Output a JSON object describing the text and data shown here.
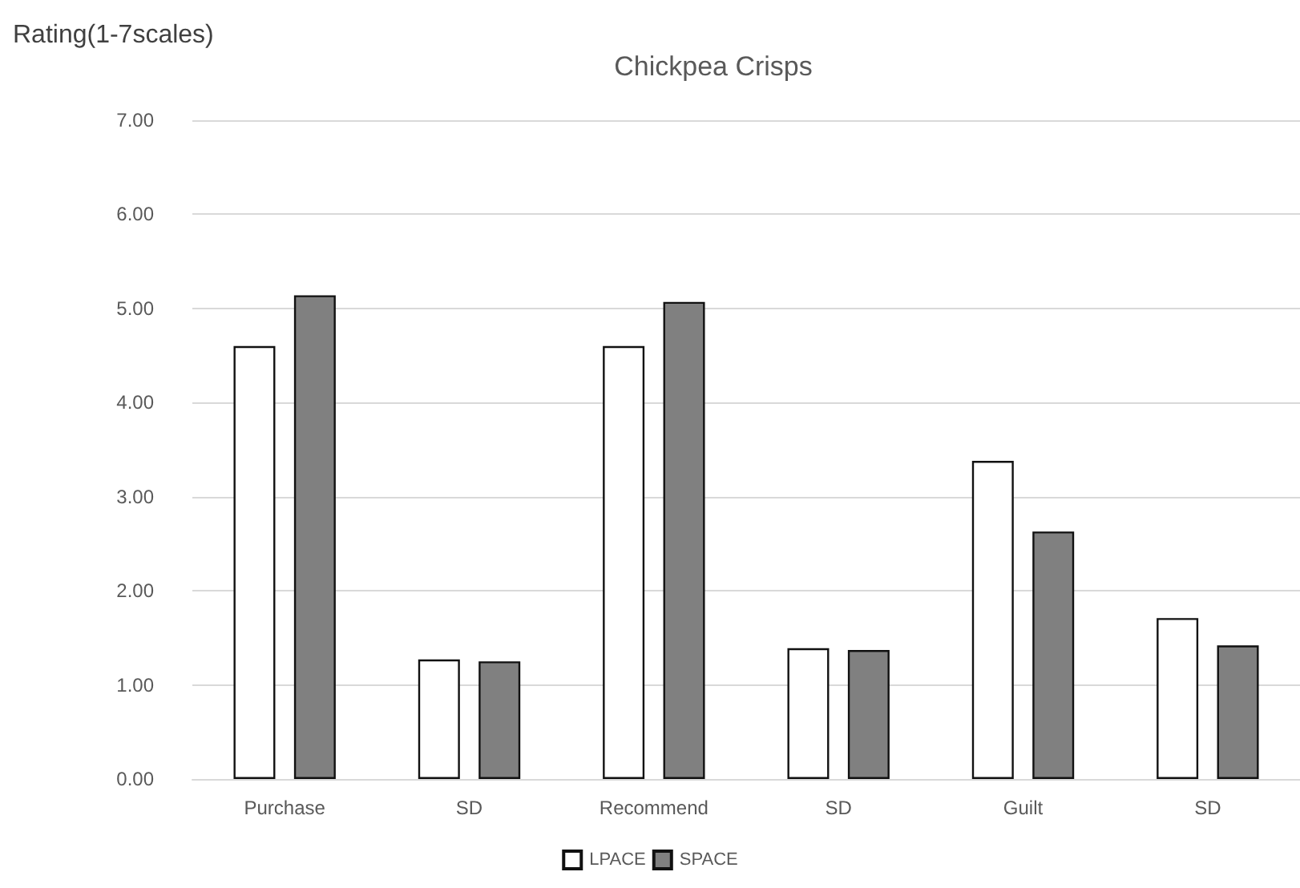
{
  "chart_data": {
    "type": "bar",
    "title": "Chickpea Crisps",
    "ylabel": "Rating(1-7scales)",
    "categories": [
      "Purchase",
      "SD",
      "Recommend",
      "SD",
      "Guilt",
      "SD"
    ],
    "series": [
      {
        "name": "LPACE",
        "color": "#ffffff",
        "values": [
          4.6,
          1.27,
          4.6,
          1.39,
          3.38,
          1.71
        ]
      },
      {
        "name": "SPACE",
        "color": "#808080",
        "values": [
          5.14,
          1.25,
          5.07,
          1.37,
          2.63,
          1.42
        ]
      }
    ],
    "ylim": [
      0,
      7
    ],
    "yticks": [
      {
        "value": 0,
        "label": "0.00"
      },
      {
        "value": 1,
        "label": "1.00"
      },
      {
        "value": 2,
        "label": "2.00"
      },
      {
        "value": 3,
        "label": "3.00"
      },
      {
        "value": 4,
        "label": "4.00"
      },
      {
        "value": 5,
        "label": "5.00"
      },
      {
        "value": 6,
        "label": "6.00"
      },
      {
        "value": 7,
        "label": "7.00"
      }
    ],
    "grid": "y",
    "legend": "bottom"
  }
}
